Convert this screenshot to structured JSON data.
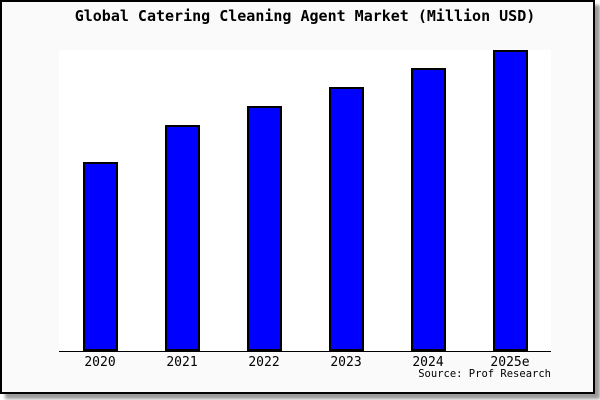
{
  "title": "Global Catering Cleaning Agent Market (Million USD)",
  "source_credit": "Source: Prof Research",
  "colors": {
    "bar_fill": "#0000FF",
    "bar_border": "#000000",
    "panel_background": "#FAFAFA",
    "plot_background": "#FFFFFF",
    "axis": "#000000",
    "text": "#000000"
  },
  "chart_data": {
    "type": "bar",
    "title": "Global Catering Cleaning Agent Market (Million USD)",
    "categories": [
      "2020",
      "2021",
      "2022",
      "2023",
      "2024",
      "2025e"
    ],
    "values": [
      62.8,
      75.1,
      81.4,
      87.7,
      94.0,
      100.0
    ],
    "value_scale_note": "no y-axis ticks or labels shown; values are relative bar heights with tallest bar (2025e) = 100",
    "xlabel": "",
    "ylabel": "",
    "ylim": [
      0,
      100
    ],
    "grid": false,
    "legend": false,
    "annotations": [
      "Source: Prof Research"
    ]
  }
}
